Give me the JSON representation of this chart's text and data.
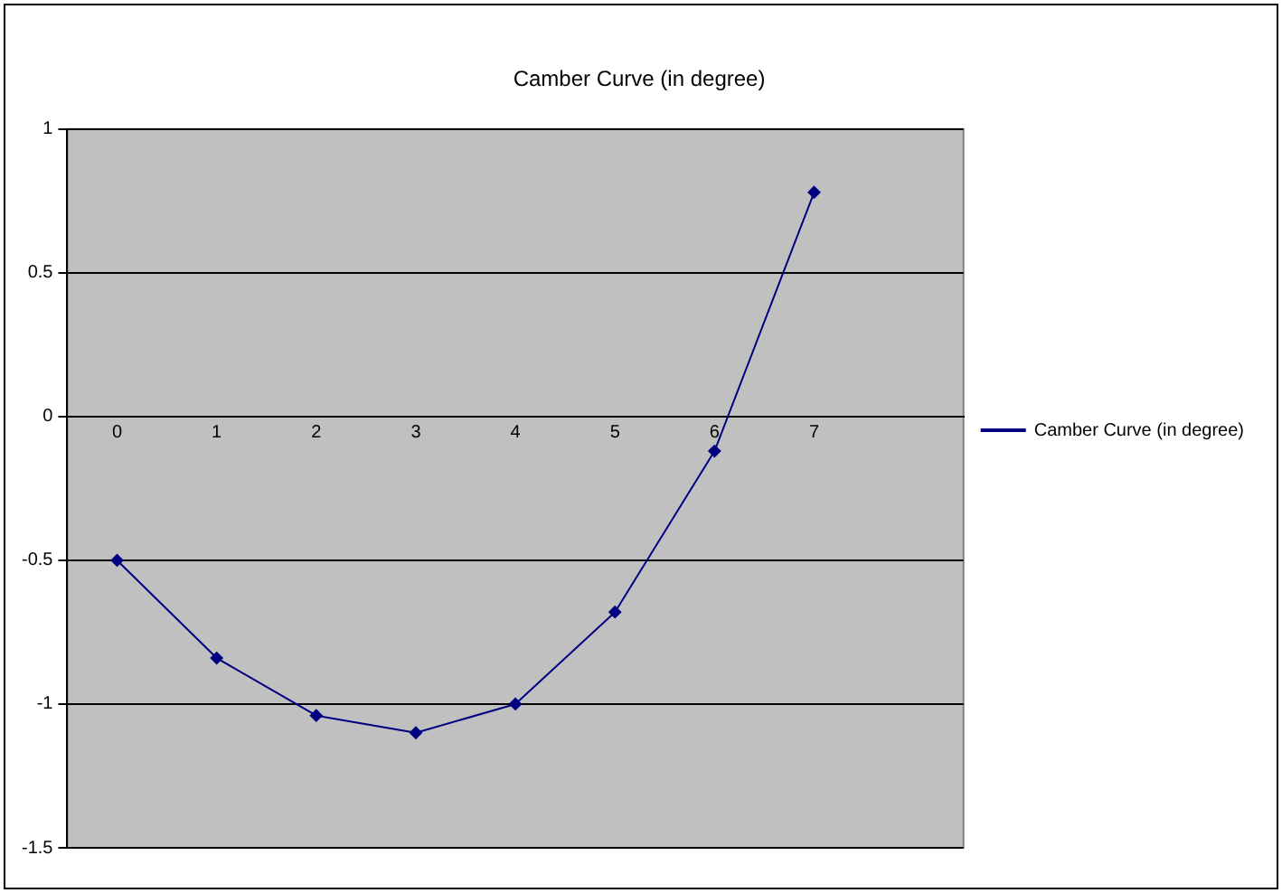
{
  "chart_data": {
    "type": "line",
    "title": "Camber Curve (in degree)",
    "categories": [
      "0",
      "1",
      "2",
      "3",
      "4",
      "5",
      "6",
      "7",
      null
    ],
    "series": [
      {
        "name": "Camber Curve (in degree)",
        "color": "#000080",
        "values": [
          -0.5,
          -0.84,
          -1.04,
          -1.1,
          -1.0,
          -0.68,
          -0.12,
          0.78,
          null
        ]
      }
    ],
    "ylim": [
      -1.5,
      1
    ],
    "yticks": [
      -1.5,
      -1,
      -0.5,
      0,
      0.5,
      1
    ],
    "grid": "y",
    "legend": "right",
    "marker": "diamond"
  }
}
